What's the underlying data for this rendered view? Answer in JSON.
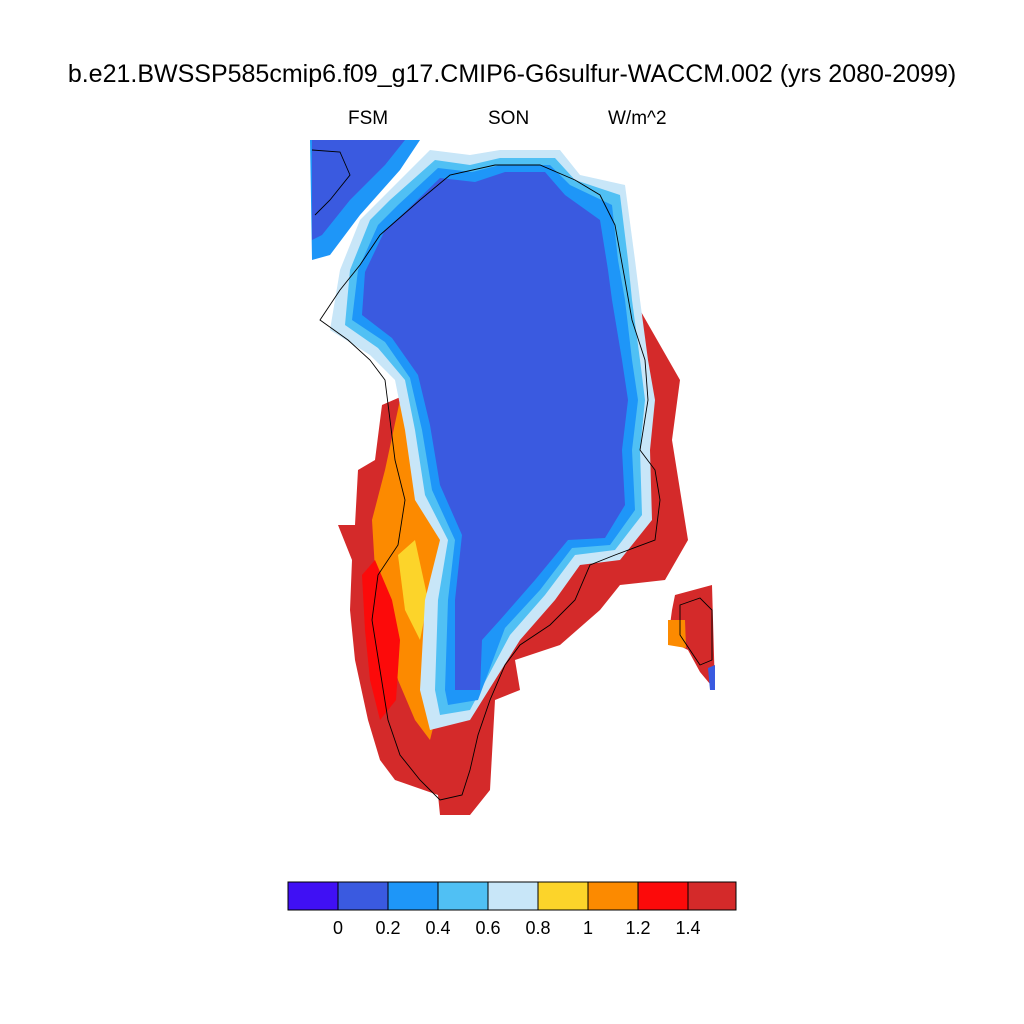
{
  "title": "b.e21.BWSSP585cmip6.f09_g17.CMIP6-G6sulfur-WACCM.002 (yrs 2080-2099)",
  "left_label": "FSM",
  "center_label": "SON",
  "right_label": "W/m^2",
  "colorbar": {
    "colors": [
      "#4010f4",
      "#3a5ae0",
      "#1e96f8",
      "#50c0f4",
      "#c8e6f8",
      "#fcd42a",
      "#fc8a00",
      "#fc0a0a",
      "#d42a2a"
    ],
    "labels": [
      "0",
      "0.2",
      "0.4",
      "0.6",
      "0.8",
      "1",
      "1.2",
      "1.4"
    ]
  },
  "chart_data": {
    "type": "heatmap",
    "variable": "FSM",
    "season": "SON",
    "units": "W/m^2",
    "levels": [
      0,
      0.2,
      0.4,
      0.6,
      0.8,
      1,
      1.2,
      1.4
    ],
    "region_summary": {
      "interior_ice_sheet": "0 to 0.2",
      "northern_and_northeastern_margin": "0.2 to 0.8",
      "western_margin": "0.8 to >1.4",
      "southwestern_and_southern_coast": ">1.4",
      "southeastern_coast": "1.2 to >1.4",
      "iceland": ">1.4"
    }
  }
}
